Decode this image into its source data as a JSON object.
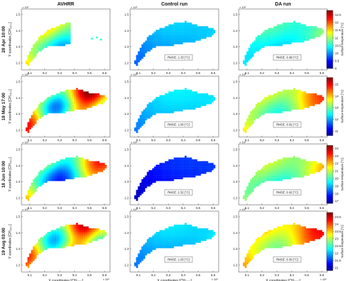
{
  "chart_data": {
    "type": "heatmap",
    "columns": [
      "AVHRR",
      "Control run",
      "DA run"
    ],
    "x_ticks": [
      "5.1",
      "5.2",
      "5.3",
      "5.4",
      "5.5",
      "5.6"
    ],
    "x_exponent": "× 10⁵",
    "x_label": "X coordinates [CH₁₉₀₃]",
    "y_ticks": [
      "1.2",
      "1.3",
      "1.4",
      "1.5"
    ],
    "y_exponent": "× 10⁵",
    "y_label": "Y coordinates [CH₁₉₀₃]",
    "colorbar_label": "Surface temperature [°C]",
    "rows": [
      {
        "date": "28 Apr 10:00",
        "rmse_control": "RMSE: 1.33 [°C]",
        "rmse_da": "RMSE: 0.98 [°C]",
        "cbar_ticks": [
          "12.5",
          "12",
          "11.5",
          "11",
          "10.5",
          "10",
          "9.5",
          "9"
        ],
        "cbar_min": 9,
        "cbar_max": 12.8
      },
      {
        "date": "18 May 17:00",
        "rmse_control": "RMSE: 1.60 [°C]",
        "rmse_da": "RMSE: 0.82 [°C]",
        "cbar_ticks": [
          "15",
          "14",
          "13",
          "12",
          "11"
        ],
        "cbar_min": 10.6,
        "cbar_max": 15.6
      },
      {
        "date": "18 Jun 10:00",
        "rmse_control": "RMSE: 2.52 [°C]",
        "rmse_da": "RMSE: 0.92 [°C]",
        "cbar_ticks": [
          "24",
          "23",
          "22",
          "21",
          "20",
          "19",
          "18",
          "17"
        ],
        "cbar_min": 16.7,
        "cbar_max": 24.4
      },
      {
        "date": "19 Aug 03:00",
        "rmse_control": "RMSE: 1.63 [°C]",
        "rmse_da": "RMSE: 0.50 [°C]",
        "cbar_ticks": [
          "24.5",
          "24",
          "23.5",
          "23",
          "22.5",
          "22",
          "21.5",
          "21"
        ],
        "cbar_min": 20.8,
        "cbar_max": 24.8
      }
    ]
  }
}
